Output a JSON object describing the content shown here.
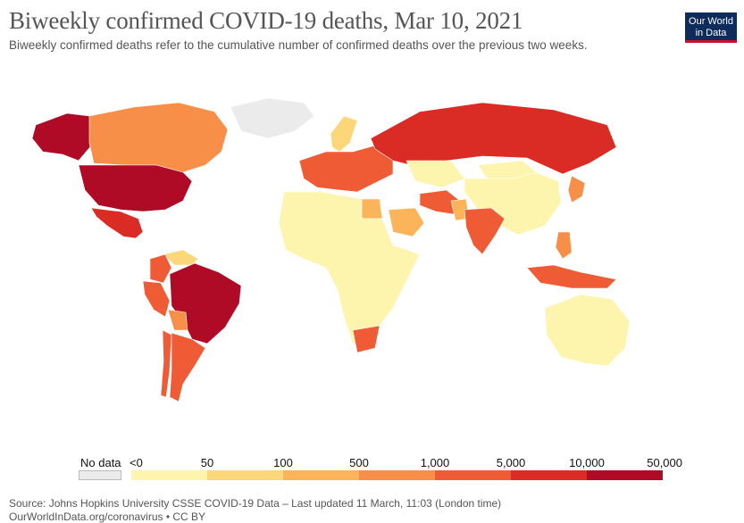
{
  "header": {
    "title": "Biweekly confirmed COVID-19 deaths, Mar 10, 2021",
    "subtitle": "Biweekly confirmed deaths refer to the cumulative number of confirmed deaths over the previous two weeks."
  },
  "logo": {
    "line1": "Our World",
    "line2": "in Data"
  },
  "legend": {
    "no_data_label": "No data",
    "no_data_color": "#ebebeb",
    "bins": [
      {
        "from": "<0",
        "to": "50",
        "color": "#fdf5ad"
      },
      {
        "from": "50",
        "to": "100",
        "color": "#fcd77a"
      },
      {
        "from": "100",
        "to": "500",
        "color": "#fbb45a"
      },
      {
        "from": "500",
        "to": "1,000",
        "color": "#f78f48"
      },
      {
        "from": "1,000",
        "to": "5,000",
        "color": "#ee5b35"
      },
      {
        "from": "5,000",
        "to": "10,000",
        "color": "#da2b25"
      },
      {
        "from": "10,000",
        "to": "50,000",
        "color": "#b00b26"
      }
    ],
    "tick_labels": [
      "<0",
      "50",
      "100",
      "500",
      "1,000",
      "5,000",
      "10,000",
      "50,000"
    ]
  },
  "map": {
    "regions": [
      {
        "name": "United States",
        "bin": 6
      },
      {
        "name": "Alaska",
        "bin": 6
      },
      {
        "name": "Brazil",
        "bin": 6
      },
      {
        "name": "Mexico",
        "bin": 5
      },
      {
        "name": "Russia",
        "bin": 5
      },
      {
        "name": "Canada",
        "bin": 3
      },
      {
        "name": "Greenland",
        "bin": -1
      },
      {
        "name": "Europe",
        "bin": 4
      },
      {
        "name": "India",
        "bin": 4
      },
      {
        "name": "Colombia",
        "bin": 4
      },
      {
        "name": "Peru",
        "bin": 4
      },
      {
        "name": "Argentina",
        "bin": 4
      },
      {
        "name": "Chile",
        "bin": 4
      },
      {
        "name": "South Africa",
        "bin": 4
      },
      {
        "name": "Indonesia",
        "bin": 4
      },
      {
        "name": "Iran",
        "bin": 4
      },
      {
        "name": "Scandinavia",
        "bin": 1
      },
      {
        "name": "Africa",
        "bin": 0
      },
      {
        "name": "Kazakhstan",
        "bin": 0
      },
      {
        "name": "Mongolia",
        "bin": 0
      },
      {
        "name": "China",
        "bin": 0
      },
      {
        "name": "Australia",
        "bin": 0
      },
      {
        "name": "Japan",
        "bin": 3
      },
      {
        "name": "Philippines",
        "bin": 3
      },
      {
        "name": "Egypt",
        "bin": 2
      },
      {
        "name": "Saudi Arabia",
        "bin": 2
      },
      {
        "name": "Pakistan",
        "bin": 2
      },
      {
        "name": "Bolivia",
        "bin": 3
      },
      {
        "name": "Venezuela",
        "bin": 1
      }
    ]
  },
  "footer": {
    "source": "Source: Johns Hopkins University CSSE COVID-19 Data – Last updated 11 March, 11:03 (London time)",
    "link": "OurWorldInData.org/coronavirus • CC BY"
  }
}
